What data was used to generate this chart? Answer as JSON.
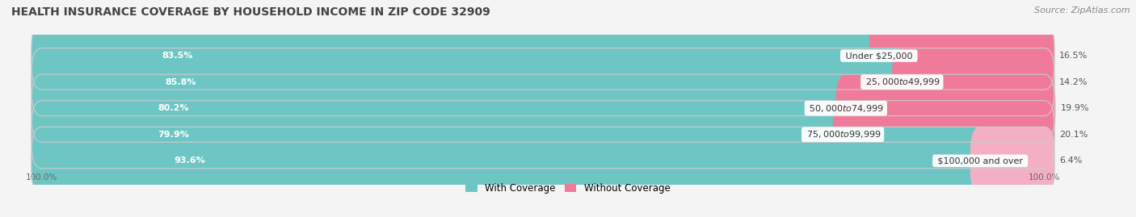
{
  "title": "HEALTH INSURANCE COVERAGE BY HOUSEHOLD INCOME IN ZIP CODE 32909",
  "source": "Source: ZipAtlas.com",
  "categories": [
    "Under $25,000",
    "$25,000 to $49,999",
    "$50,000 to $74,999",
    "$75,000 to $99,999",
    "$100,000 and over"
  ],
  "with_coverage": [
    83.5,
    85.8,
    80.2,
    79.9,
    93.6
  ],
  "without_coverage": [
    16.5,
    14.2,
    19.9,
    20.1,
    6.4
  ],
  "color_with": "#6ec6c4",
  "color_without": "#f07a9a",
  "color_without_last": "#f5afc4",
  "background_color": "#f4f4f4",
  "bar_bg_color": "#e2e2e2",
  "title_fontsize": 10,
  "source_fontsize": 8,
  "label_fontsize": 8,
  "cat_fontsize": 8,
  "legend_fontsize": 8.5,
  "axis_label_fontsize": 7.5,
  "bar_height": 0.58,
  "figsize": [
    14.06,
    2.69
  ],
  "dpi": 100,
  "total_width": 100
}
